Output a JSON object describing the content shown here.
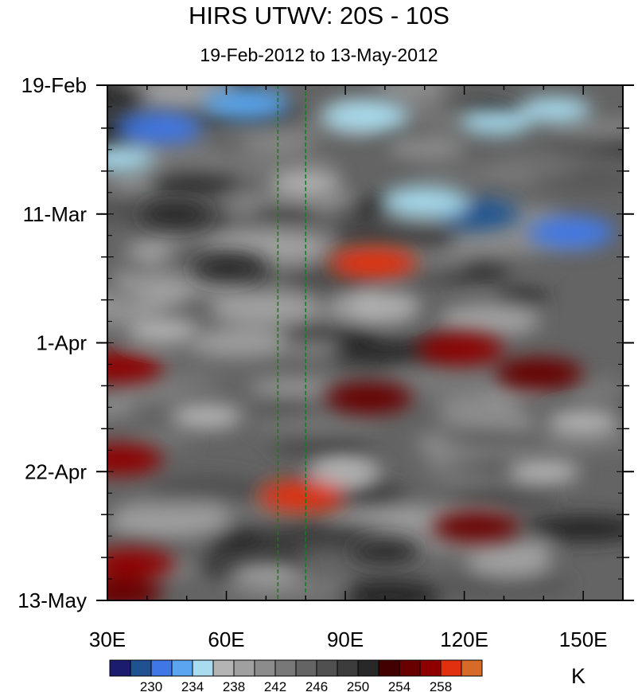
{
  "chart_data": {
    "type": "heatmap",
    "title": "HIRS UTWV: 20S - 10S",
    "subtitle": "19-Feb-2012 to 13-May-2012",
    "x_axis": {
      "min": 30,
      "max": 160,
      "ticks": [
        30,
        60,
        90,
        120,
        150
      ],
      "tick_labels": [
        "30E",
        "60E",
        "90E",
        "120E",
        "150E"
      ]
    },
    "y_axis": {
      "start": "2012-02-19",
      "end": "2012-05-13",
      "ticks": [
        "2012-02-19",
        "2012-03-11",
        "2012-04-01",
        "2012-04-22",
        "2012-05-13"
      ],
      "tick_labels": [
        "19-Feb",
        "11-Mar",
        "1-Apr",
        "22-Apr",
        "13-May"
      ],
      "direction": "time increases downward"
    },
    "reference_lines": [
      {
        "x": 73,
        "style": "dashed",
        "color": "#1a7a1a"
      },
      {
        "x": 80,
        "style": "dashed",
        "color": "#1a7a1a"
      }
    ],
    "colorbar": {
      "units": "K",
      "levels": [
        228,
        230,
        232,
        234,
        236,
        238,
        240,
        242,
        244,
        246,
        248,
        250,
        252,
        254,
        256,
        258
      ],
      "labels": [
        "230",
        "234",
        "238",
        "242",
        "246",
        "250",
        "254",
        "258"
      ],
      "colors": [
        "#1c1c6e",
        "#1f5290",
        "#3f77e6",
        "#5aa5ee",
        "#a9dcee",
        "#b4b4b4",
        "#a0a0a0",
        "#8c8c8c",
        "#787878",
        "#646464",
        "#505050",
        "#3c3c3c",
        "#282828",
        "#420000",
        "#680000",
        "#8e0000",
        "#e03010",
        "#d86a28"
      ]
    },
    "hotspots": [
      {
        "x": 97,
        "y": "2012-03-19",
        "value": 259
      },
      {
        "x": 119,
        "y": "2012-04-02",
        "value": 257
      },
      {
        "x": 139,
        "y": "2012-04-06",
        "value": 255
      },
      {
        "x": 33,
        "y": "2012-04-05",
        "value": 257
      },
      {
        "x": 79,
        "y": "2012-04-26",
        "value": 258
      },
      {
        "x": 47,
        "y": "2012-03-11",
        "value": 251
      },
      {
        "x": 33,
        "y": "2012-04-20",
        "value": 256
      },
      {
        "x": 36,
        "y": "2012-05-07",
        "value": 256
      },
      {
        "x": 33,
        "y": "2012-05-12",
        "value": 255
      },
      {
        "x": 123,
        "y": "2012-05-01",
        "value": 254
      },
      {
        "x": 96,
        "y": "2012-04-10",
        "value": 254
      },
      {
        "x": 60,
        "y": "2012-03-20",
        "value": 250
      },
      {
        "x": 100,
        "y": "2012-05-05",
        "value": 251
      },
      {
        "x": 123,
        "y": "2012-03-11",
        "value": 229
      },
      {
        "x": 147,
        "y": "2012-03-14",
        "value": 230
      },
      {
        "x": 43,
        "y": "2012-02-26",
        "value": 231
      },
      {
        "x": 65,
        "y": "2012-02-22",
        "value": 233
      },
      {
        "x": 95,
        "y": "2012-02-24",
        "value": 234
      },
      {
        "x": 128,
        "y": "2012-02-25",
        "value": 235
      },
      {
        "x": 143,
        "y": "2012-02-23",
        "value": 235
      },
      {
        "x": 110,
        "y": "2012-03-09",
        "value": 234
      },
      {
        "x": 33,
        "y": "2012-03-02",
        "value": 235
      },
      {
        "x": 80,
        "y": "2012-03-06",
        "value": 236
      },
      {
        "x": 100,
        "y": "2012-03-26",
        "value": 237
      },
      {
        "x": 150,
        "y": "2012-04-14",
        "value": 237
      },
      {
        "x": 55,
        "y": "2012-04-13",
        "value": 237
      },
      {
        "x": 90,
        "y": "2012-04-22",
        "value": 236
      },
      {
        "x": 140,
        "y": "2012-04-22",
        "value": 237
      },
      {
        "x": 44,
        "y": "2012-03-30",
        "value": 236
      },
      {
        "x": 70,
        "y": "2012-05-09",
        "value": 238
      }
    ]
  }
}
